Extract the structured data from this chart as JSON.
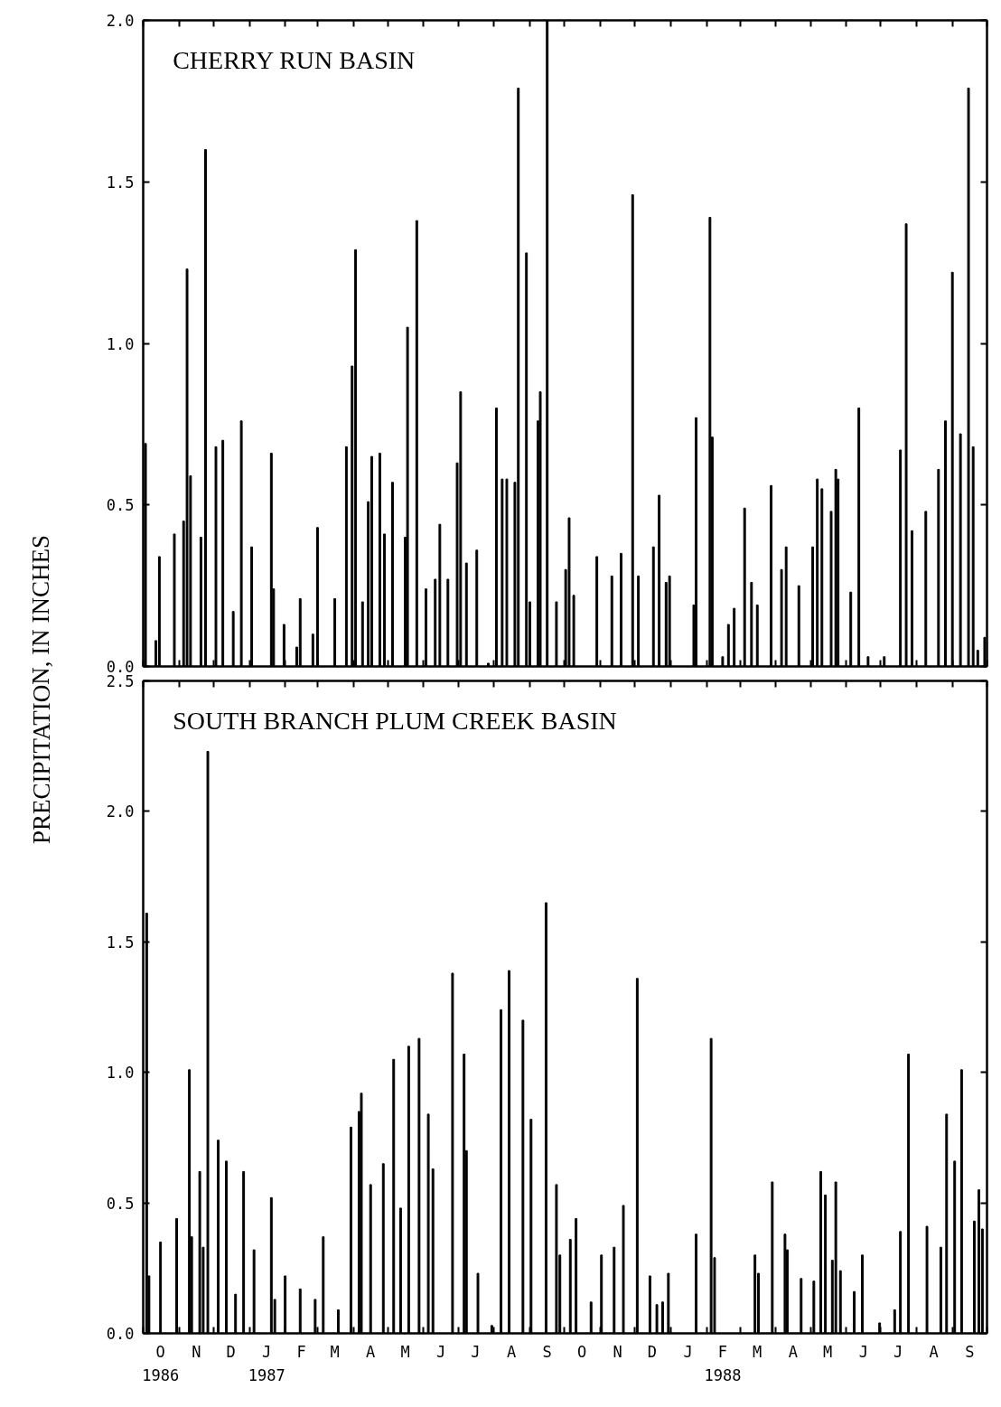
{
  "chart_data": [
    {
      "type": "bar",
      "title": "CHERRY RUN BASIN",
      "ylabel": "PRECIPITATION, IN INCHES",
      "color": "#000000",
      "grid": false,
      "tick_labels": "y",
      "xlim": [
        "1986-10-01",
        "1988-10-01"
      ],
      "ylim": [
        0,
        2.0
      ],
      "yticks": [
        {
          "value": 0,
          "label": "0.0"
        },
        {
          "value": 0.5,
          "label": "0.5"
        },
        {
          "value": 1.0,
          "label": "1.0"
        },
        {
          "value": 1.5,
          "label": "1.5"
        },
        {
          "value": 2.0,
          "label": "2.0"
        }
      ],
      "xticks": [
        {
          "value": "1986-10-01",
          "label": null
        },
        {
          "value": "1986-11-01",
          "label": null
        },
        {
          "value": "1986-12-01",
          "label": null
        },
        {
          "value": "1987-01-01",
          "label": null
        },
        {
          "value": "1987-02-01",
          "label": null
        },
        {
          "value": "1987-03-01",
          "label": null
        },
        {
          "value": "1987-04-01",
          "label": null
        },
        {
          "value": "1987-05-01",
          "label": null
        },
        {
          "value": "1987-06-01",
          "label": null
        },
        {
          "value": "1987-07-01",
          "label": null
        },
        {
          "value": "1987-08-01",
          "label": null
        },
        {
          "value": "1987-09-01",
          "label": null
        },
        {
          "value": "1987-10-01",
          "label": null
        },
        {
          "value": "1987-11-01",
          "label": null
        },
        {
          "value": "1987-12-01",
          "label": null
        },
        {
          "value": "1988-01-01",
          "label": null
        },
        {
          "value": "1988-02-01",
          "label": null
        },
        {
          "value": "1988-03-01",
          "label": null
        },
        {
          "value": "1988-04-01",
          "label": null
        },
        {
          "value": "1988-05-01",
          "label": null
        },
        {
          "value": "1988-06-01",
          "label": null
        },
        {
          "value": "1988-07-01",
          "label": null
        },
        {
          "value": "1988-08-01",
          "label": null
        },
        {
          "value": "1988-09-01",
          "label": null
        },
        {
          "value": "1988-10-01",
          "label": null
        }
      ],
      "x": [
        "1986-10-03",
        "1986-10-12",
        "1986-10-15",
        "1986-10-28",
        "1986-11-05",
        "1986-11-08",
        "1986-11-11",
        "1986-11-20",
        "1986-11-24",
        "1986-12-03",
        "1986-12-09",
        "1986-12-18",
        "1986-12-25",
        "1987-01-03",
        "1987-01-20",
        "1987-01-22",
        "1987-01-31",
        "1987-02-11",
        "1987-02-14",
        "1987-02-25",
        "1987-03-01",
        "1987-03-16",
        "1987-03-26",
        "1987-03-31",
        "1987-04-03",
        "1987-04-09",
        "1987-04-14",
        "1987-04-17",
        "1987-04-24",
        "1987-04-28",
        "1987-05-05",
        "1987-05-16",
        "1987-05-18",
        "1987-05-26",
        "1987-06-03",
        "1987-06-11",
        "1987-06-15",
        "1987-06-22",
        "1987-06-30",
        "1987-07-03",
        "1987-07-08",
        "1987-07-17",
        "1987-07-27",
        "1987-08-03",
        "1987-08-08",
        "1987-08-12",
        "1987-08-19",
        "1987-08-22",
        "1987-08-29",
        "1987-09-01",
        "1987-09-08",
        "1987-09-10",
        "1987-09-16",
        "1987-09-24",
        "1987-10-02",
        "1987-10-05",
        "1987-10-09",
        "1987-10-29",
        "1987-11-11",
        "1987-11-19",
        "1987-11-29",
        "1987-12-04",
        "1987-12-17",
        "1987-12-22",
        "1987-12-28",
        "1987-12-31",
        "1988-01-21",
        "1988-01-23",
        "1988-02-04",
        "1988-02-06",
        "1988-02-15",
        "1988-02-20",
        "1988-02-25",
        "1988-03-05",
        "1988-03-11",
        "1988-03-16",
        "1988-03-28",
        "1988-04-06",
        "1988-04-10",
        "1988-04-21",
        "1988-05-03",
        "1988-05-07",
        "1988-05-11",
        "1988-05-19",
        "1988-05-23",
        "1988-05-25",
        "1988-06-05",
        "1988-06-12",
        "1988-06-20",
        "1988-07-04",
        "1988-07-18",
        "1988-07-23",
        "1988-07-28",
        "1988-08-09",
        "1988-08-20",
        "1988-08-26",
        "1988-09-01",
        "1988-09-08",
        "1988-09-15",
        "1988-09-19",
        "1988-09-23",
        "1988-09-29"
      ],
      "values": [
        0.69,
        0.08,
        0.34,
        0.41,
        0.45,
        1.23,
        0.59,
        0.4,
        1.6,
        0.68,
        0.7,
        0.17,
        0.76,
        0.37,
        0.66,
        0.24,
        0.13,
        0.06,
        0.21,
        0.1,
        0.43,
        0.21,
        0.68,
        0.93,
        1.29,
        0.2,
        0.51,
        0.65,
        0.66,
        0.41,
        0.57,
        0.4,
        1.05,
        1.38,
        0.24,
        0.27,
        0.44,
        0.27,
        0.63,
        0.85,
        0.32,
        0.36,
        0.01,
        0.8,
        0.58,
        0.58,
        0.57,
        1.79,
        1.28,
        0.2,
        0.76,
        0.85,
        2.0,
        0.2,
        0.3,
        0.46,
        0.22,
        0.34,
        0.28,
        0.35,
        1.46,
        0.28,
        0.37,
        0.53,
        0.26,
        0.28,
        0.19,
        0.77,
        1.39,
        0.71,
        0.03,
        0.13,
        0.18,
        0.49,
        0.26,
        0.19,
        0.56,
        0.3,
        0.37,
        0.25,
        0.37,
        0.58,
        0.55,
        0.48,
        0.61,
        0.58,
        0.23,
        0.8,
        0.03,
        0.03,
        0.67,
        1.37,
        0.42,
        0.48,
        0.61,
        0.76,
        1.22,
        0.72,
        1.79,
        0.68,
        0.05,
        0.09
      ]
    },
    {
      "type": "bar",
      "title": "SOUTH BRANCH PLUM CREEK BASIN",
      "color": "#000000",
      "grid": false,
      "xlim": [
        "1986-10-01",
        "1988-10-01"
      ],
      "ylim": [
        0,
        2.5
      ],
      "yticks": [
        {
          "value": 0,
          "label": "0.0"
        },
        {
          "value": 0.5,
          "label": "0.5"
        },
        {
          "value": 1.0,
          "label": "1.0"
        },
        {
          "value": 1.5,
          "label": "1.5"
        },
        {
          "value": 2.0,
          "label": "2.0"
        },
        {
          "value": 2.5,
          "label": "2.5"
        }
      ],
      "xticks": [
        {
          "value": "1986-10-01",
          "label": null
        },
        {
          "value": "1986-11-01",
          "label": null
        },
        {
          "value": "1986-12-01",
          "label": null
        },
        {
          "value": "1987-01-01",
          "label": null
        },
        {
          "value": "1987-02-01",
          "label": null
        },
        {
          "value": "1987-03-01",
          "label": null
        },
        {
          "value": "1987-04-01",
          "label": null
        },
        {
          "value": "1987-05-01",
          "label": null
        },
        {
          "value": "1987-06-01",
          "label": null
        },
        {
          "value": "1987-07-01",
          "label": null
        },
        {
          "value": "1987-08-01",
          "label": null
        },
        {
          "value": "1987-09-01",
          "label": null
        },
        {
          "value": "1987-10-01",
          "label": null
        },
        {
          "value": "1987-11-01",
          "label": null
        },
        {
          "value": "1987-12-01",
          "label": null
        },
        {
          "value": "1988-01-01",
          "label": null
        },
        {
          "value": "1988-02-01",
          "label": null
        },
        {
          "value": "1988-03-01",
          "label": null
        },
        {
          "value": "1988-04-01",
          "label": null
        },
        {
          "value": "1988-05-01",
          "label": null
        },
        {
          "value": "1988-06-01",
          "label": null
        },
        {
          "value": "1988-07-01",
          "label": null
        },
        {
          "value": "1988-08-01",
          "label": null
        },
        {
          "value": "1988-09-01",
          "label": null
        },
        {
          "value": "1988-10-01",
          "label": null
        },
        {
          "value": "1986-10-16",
          "label": "O\n1986"
        },
        {
          "value": "1986-11-16",
          "label": "N"
        },
        {
          "value": "1986-12-16",
          "label": "D"
        },
        {
          "value": "1987-01-16",
          "label": "J\n1987"
        },
        {
          "value": "1987-02-15",
          "label": "F"
        },
        {
          "value": "1987-03-16",
          "label": "M"
        },
        {
          "value": "1987-04-16",
          "label": "A"
        },
        {
          "value": "1987-05-16",
          "label": "M"
        },
        {
          "value": "1987-06-16",
          "label": "J"
        },
        {
          "value": "1987-07-16",
          "label": "J"
        },
        {
          "value": "1987-08-16",
          "label": "A"
        },
        {
          "value": "1987-09-16",
          "label": "S"
        },
        {
          "value": "1987-10-16",
          "label": "O"
        },
        {
          "value": "1987-11-16",
          "label": "N"
        },
        {
          "value": "1987-12-16",
          "label": "D"
        },
        {
          "value": "1988-01-16",
          "label": "J"
        },
        {
          "value": "1988-02-15",
          "label": "F\n1988"
        },
        {
          "value": "1988-03-16",
          "label": "M"
        },
        {
          "value": "1988-04-16",
          "label": "A"
        },
        {
          "value": "1988-05-16",
          "label": "M"
        },
        {
          "value": "1988-06-16",
          "label": "J"
        },
        {
          "value": "1988-07-16",
          "label": "J"
        },
        {
          "value": "1988-08-16",
          "label": "A"
        },
        {
          "value": "1988-09-16",
          "label": "S"
        }
      ],
      "x": [
        "1986-10-04",
        "1986-10-06",
        "1986-10-16",
        "1986-10-30",
        "1986-11-10",
        "1986-11-12",
        "1986-11-19",
        "1986-11-22",
        "1986-11-26",
        "1986-12-05",
        "1986-12-12",
        "1986-12-20",
        "1986-12-27",
        "1987-01-05",
        "1987-01-20",
        "1987-01-23",
        "1987-02-01",
        "1987-02-14",
        "1987-02-27",
        "1987-03-06",
        "1987-03-19",
        "1987-03-30",
        "1987-04-06",
        "1987-04-08",
        "1987-04-16",
        "1987-04-27",
        "1987-05-06",
        "1987-05-12",
        "1987-05-19",
        "1987-05-28",
        "1987-06-05",
        "1987-06-09",
        "1987-06-26",
        "1987-07-06",
        "1987-07-08",
        "1987-07-18",
        "1987-07-30",
        "1987-08-07",
        "1987-08-14",
        "1987-08-26",
        "1987-09-02",
        "1987-09-15",
        "1987-09-24",
        "1987-09-27",
        "1987-10-06",
        "1987-10-11",
        "1987-10-24",
        "1987-11-02",
        "1987-11-13",
        "1987-11-21",
        "1987-12-03",
        "1987-12-14",
        "1987-12-20",
        "1987-12-25",
        "1987-12-30",
        "1988-01-23",
        "1988-02-05",
        "1988-02-08",
        "1988-03-14",
        "1988-03-17",
        "1988-03-29",
        "1988-04-09",
        "1988-04-11",
        "1988-04-23",
        "1988-05-04",
        "1988-05-10",
        "1988-05-14",
        "1988-05-20",
        "1988-05-23",
        "1988-05-27",
        "1988-06-08",
        "1988-06-15",
        "1988-06-30",
        "1988-07-13",
        "1988-07-18",
        "1988-07-25",
        "1988-08-10",
        "1988-08-22",
        "1988-08-27",
        "1988-09-03",
        "1988-09-09",
        "1988-09-20",
        "1988-09-24",
        "1988-09-27"
      ],
      "values": [
        1.61,
        0.22,
        0.35,
        0.44,
        1.01,
        0.37,
        0.62,
        0.33,
        2.23,
        0.74,
        0.66,
        0.15,
        0.62,
        0.32,
        0.52,
        0.13,
        0.22,
        0.17,
        0.13,
        0.37,
        0.09,
        0.79,
        0.85,
        0.92,
        0.57,
        0.65,
        1.05,
        0.48,
        1.1,
        1.13,
        0.84,
        0.63,
        1.38,
        1.07,
        0.7,
        0.23,
        0.03,
        1.24,
        1.39,
        1.2,
        0.82,
        1.65,
        0.57,
        0.3,
        0.36,
        0.44,
        0.12,
        0.3,
        0.33,
        0.49,
        1.36,
        0.22,
        0.11,
        0.12,
        0.23,
        0.38,
        1.13,
        0.29,
        0.3,
        0.23,
        0.58,
        0.38,
        0.32,
        0.21,
        0.2,
        0.62,
        0.53,
        0.28,
        0.58,
        0.24,
        0.16,
        0.3,
        0.04,
        0.09,
        0.39,
        1.07,
        0.41,
        0.33,
        0.84,
        0.66,
        1.01,
        0.43,
        0.55,
        0.4
      ]
    }
  ]
}
